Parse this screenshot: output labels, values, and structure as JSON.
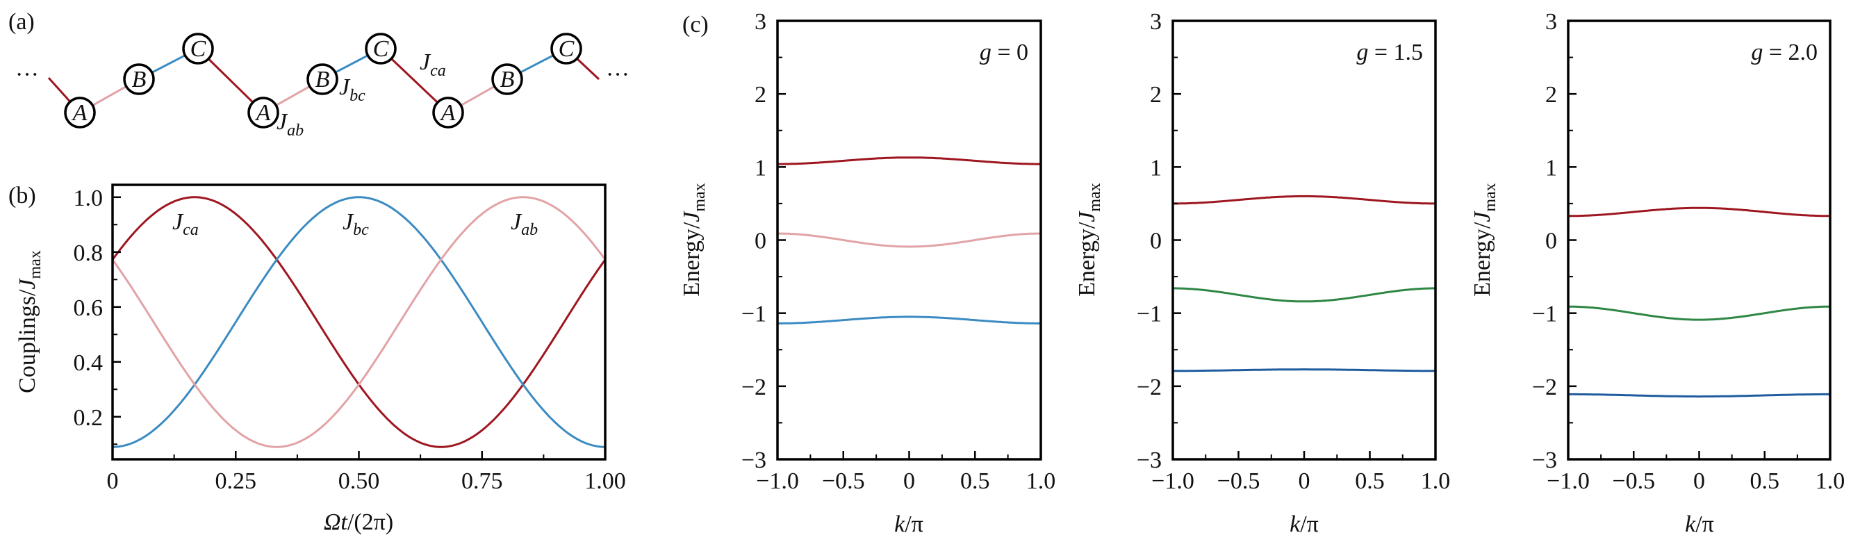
{
  "panel_labels": {
    "a": "(a)",
    "b": "(b)",
    "c": "(c)"
  },
  "diagram": {
    "nodes": [
      "A",
      "B",
      "C",
      "A",
      "B",
      "C",
      "A",
      "B",
      "C"
    ],
    "ellipsis": "···",
    "bond_labels": {
      "ab": {
        "var": "J",
        "sub": "ab"
      },
      "bc": {
        "var": "J",
        "sub": "bc"
      },
      "ca": {
        "var": "J",
        "sub": "ca"
      }
    },
    "colors": {
      "ab": "#e2a3a6",
      "bc": "#3b8bc2",
      "ca": "#9e1620"
    }
  },
  "chart_data": [
    {
      "type": "line",
      "panel": "b",
      "xlabel": {
        "var": "Ωt",
        "rest": "/(2π)"
      },
      "ylabel": {
        "text": "Couplings/",
        "var": "J",
        "sub": "max"
      },
      "xlim": [
        0,
        1
      ],
      "ylim": [
        0.045,
        1.045
      ],
      "xticks": [
        0,
        0.25,
        0.5,
        0.75,
        1.0
      ],
      "xtick_labels": [
        "0",
        "0.25",
        "0.50",
        "0.75",
        "1.00"
      ],
      "yticks": [
        0.2,
        0.4,
        0.6,
        0.8,
        1.0
      ],
      "ytick_labels": [
        "0.2",
        "0.4",
        "0.6",
        "0.8",
        "1.0"
      ],
      "series": [
        {
          "name": "J_ca",
          "var": "J",
          "sub": "ca",
          "color": "#9e1620",
          "max": 1.0,
          "min": 0.09,
          "peak_at": 0.1667
        },
        {
          "name": "J_bc",
          "var": "J",
          "sub": "bc",
          "color": "#3b8bc2",
          "max": 1.0,
          "min": 0.09,
          "peak_at": 0.5
        },
        {
          "name": "J_ab",
          "var": "J",
          "sub": "ab",
          "color": "#e2a3a6",
          "max": 1.0,
          "min": 0.09,
          "peak_at": 0.8333
        }
      ]
    },
    {
      "type": "line",
      "panel": "c1",
      "title_var": "g",
      "title_value": "= 0",
      "xlabel": {
        "var": "k",
        "rest": "/π"
      },
      "ylabel": {
        "text": "Energy/",
        "var": "J",
        "sub": "max"
      },
      "xlim": [
        -1,
        1
      ],
      "ylim": [
        -3,
        3
      ],
      "xticks": [
        -1,
        -0.5,
        0,
        0.5,
        1
      ],
      "xtick_labels": [
        "−1.0",
        "−0.5",
        "0",
        "0.5",
        "1.0"
      ],
      "yticks": [
        -3,
        -2,
        -1,
        0,
        1,
        2,
        3
      ],
      "ytick_labels": [
        "−3",
        "−2",
        "−1",
        "0",
        "1",
        "2",
        "3"
      ],
      "series": [
        {
          "name": "upper band",
          "color": "#9e1620",
          "E_at_k0": 1.13,
          "E_at_kpi": 1.04
        },
        {
          "name": "middle band",
          "color": "#e2a3a6",
          "E_at_k0": -0.09,
          "E_at_kpi": 0.09
        },
        {
          "name": "lower band",
          "color": "#3b8bc2",
          "E_at_k0": -1.05,
          "E_at_kpi": -1.14
        }
      ]
    },
    {
      "type": "line",
      "panel": "c2",
      "title_var": "g",
      "title_value": "= 1.5",
      "xlabel": {
        "var": "k",
        "rest": "/π"
      },
      "ylabel": {
        "text": "Energy/",
        "var": "J",
        "sub": "max"
      },
      "xlim": [
        -1,
        1
      ],
      "ylim": [
        -3,
        3
      ],
      "xticks": [
        -1,
        -0.5,
        0,
        0.5,
        1
      ],
      "xtick_labels": [
        "−1.0",
        "−0.5",
        "0",
        "0.5",
        "1.0"
      ],
      "yticks": [
        -3,
        -2,
        -1,
        0,
        1,
        2,
        3
      ],
      "ytick_labels": [
        "−3",
        "−2",
        "−1",
        "0",
        "1",
        "2",
        "3"
      ],
      "series": [
        {
          "name": "upper band",
          "color": "#9e1620",
          "E_at_k0": 0.6,
          "E_at_kpi": 0.5
        },
        {
          "name": "middle band",
          "color": "#2e8744",
          "E_at_k0": -0.84,
          "E_at_kpi": -0.66
        },
        {
          "name": "lower band",
          "color": "#1f5c9e",
          "E_at_k0": -1.77,
          "E_at_kpi": -1.79
        }
      ]
    },
    {
      "type": "line",
      "panel": "c3",
      "title_var": "g",
      "title_value": "= 2.0",
      "xlabel": {
        "var": "k",
        "rest": "/π"
      },
      "ylabel": {
        "text": "Energy/",
        "var": "J",
        "sub": "max"
      },
      "xlim": [
        -1,
        1
      ],
      "ylim": [
        -3,
        3
      ],
      "xticks": [
        -1,
        -0.5,
        0,
        0.5,
        1
      ],
      "xtick_labels": [
        "−1.0",
        "−0.5",
        "0",
        "0.5",
        "1.0"
      ],
      "yticks": [
        -3,
        -2,
        -1,
        0,
        1,
        2,
        3
      ],
      "ytick_labels": [
        "−3",
        "−2",
        "−1",
        "0",
        "1",
        "2",
        "3"
      ],
      "series": [
        {
          "name": "upper band",
          "color": "#9e1620",
          "E_at_k0": 0.44,
          "E_at_kpi": 0.33
        },
        {
          "name": "middle band",
          "color": "#2e8744",
          "E_at_k0": -1.09,
          "E_at_kpi": -0.91
        },
        {
          "name": "lower band",
          "color": "#1f5c9e",
          "E_at_k0": -2.14,
          "E_at_kpi": -2.11
        }
      ]
    }
  ]
}
